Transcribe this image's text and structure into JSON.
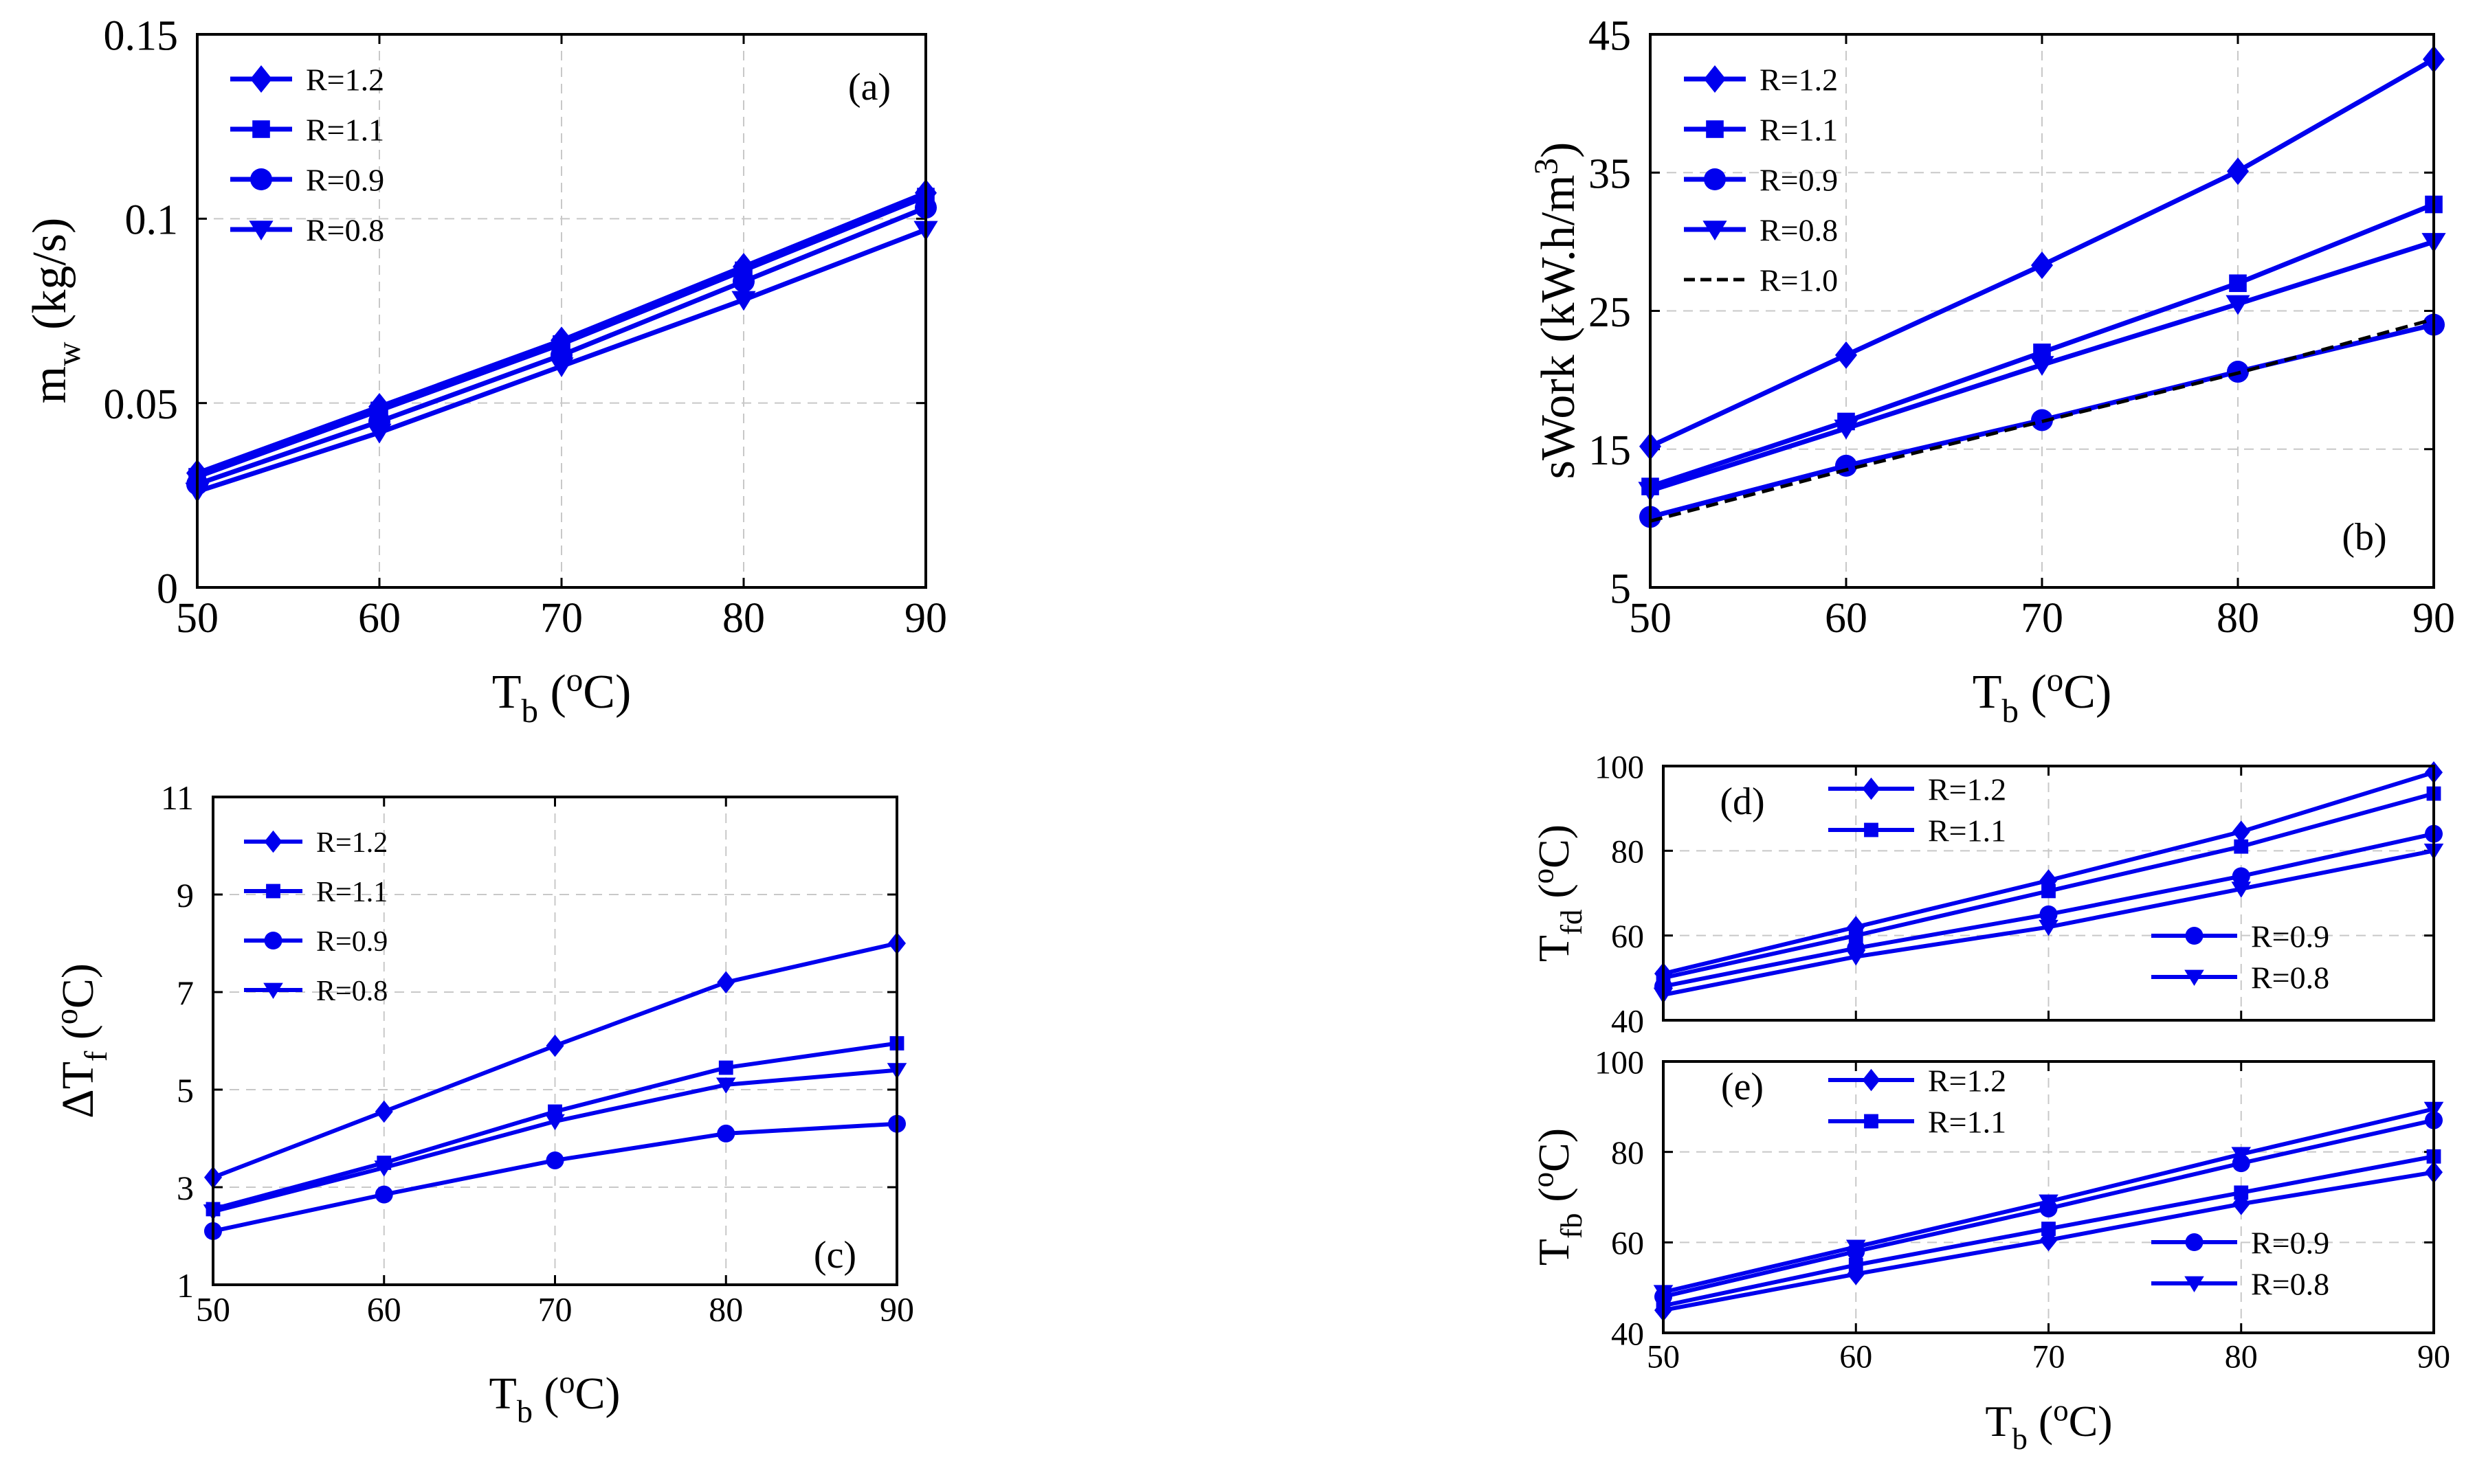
{
  "colors": {
    "series": "#0000ee",
    "reference": "#000000",
    "grid": "#c8c8c8",
    "axis": "#000000"
  },
  "chart_data": [
    {
      "id": "a",
      "type": "line",
      "panel_label": "(a)",
      "ylabel_main": "m",
      "ylabel_sub": "w",
      "ylabel_tail": " (kg/s)",
      "xlabel_main": "T",
      "xlabel_sub": "b",
      "xlabel_tail": " (",
      "xlabel_sup": "o",
      "xlabel_end": "C)",
      "x": [
        50,
        60,
        70,
        80,
        90
      ],
      "xlim": [
        50,
        90
      ],
      "xticks": [
        50,
        60,
        70,
        80,
        90
      ],
      "ylim": [
        0,
        0.15
      ],
      "yticks": [
        0,
        0.05,
        0.1,
        0.15
      ],
      "ytick_labels": [
        "0",
        "0.05",
        "0.1",
        "0.15"
      ],
      "legend_position": "top-left",
      "series": [
        {
          "name": "R=1.2",
          "marker": "diamond",
          "values": [
            0.031,
            0.049,
            0.067,
            0.087,
            0.107
          ]
        },
        {
          "name": "R=1.1",
          "marker": "square",
          "values": [
            0.03,
            0.048,
            0.066,
            0.086,
            0.106
          ]
        },
        {
          "name": "R=0.9",
          "marker": "circle",
          "values": [
            0.028,
            0.045,
            0.063,
            0.083,
            0.103
          ]
        },
        {
          "name": "R=0.8",
          "marker": "triangle-down",
          "values": [
            0.026,
            0.042,
            0.06,
            0.078,
            0.097
          ]
        }
      ]
    },
    {
      "id": "b",
      "type": "line",
      "panel_label": "(b)",
      "ylabel_main": "sWork (kW.h/m",
      "ylabel_sup": "3",
      "ylabel_tail": ")",
      "xlabel_main": "T",
      "xlabel_sub": "b",
      "xlabel_tail": " (",
      "xlabel_sup": "o",
      "xlabel_end": "C)",
      "x": [
        50,
        60,
        70,
        80,
        90
      ],
      "xlim": [
        50,
        90
      ],
      "xticks": [
        50,
        60,
        70,
        80,
        90
      ],
      "ylim": [
        5,
        45
      ],
      "yticks": [
        5,
        15,
        25,
        35,
        45
      ],
      "ytick_labels": [
        "5",
        "15",
        "25",
        "35",
        "45"
      ],
      "legend_position": "top-left",
      "series": [
        {
          "name": "R=1.2",
          "marker": "diamond",
          "values": [
            15.2,
            21.8,
            28.3,
            35.1,
            43.2
          ]
        },
        {
          "name": "R=1.1",
          "marker": "square",
          "values": [
            12.3,
            17.0,
            22.0,
            27.0,
            32.7
          ]
        },
        {
          "name": "R=0.9",
          "marker": "circle",
          "values": [
            10.1,
            13.8,
            17.1,
            20.6,
            24.0
          ]
        },
        {
          "name": "R=0.8",
          "marker": "triangle-down",
          "values": [
            12.0,
            16.5,
            21.1,
            25.5,
            30.0
          ]
        },
        {
          "name": "R=1.0",
          "marker": "none",
          "dashed": true,
          "values": [
            9.8,
            13.5,
            17.0,
            20.5,
            24.4
          ]
        }
      ]
    },
    {
      "id": "c",
      "type": "line",
      "panel_label": "(c)",
      "ylabel_main": "ΔT",
      "ylabel_sub": "f",
      "ylabel_tail": " (",
      "ylabel_sup": "o",
      "ylabel_end": "C)",
      "xlabel_main": "T",
      "xlabel_sub": "b",
      "xlabel_tail": " (",
      "xlabel_sup": "o",
      "xlabel_end": "C)",
      "x": [
        50,
        60,
        70,
        80,
        90
      ],
      "xlim": [
        50,
        90
      ],
      "xticks": [
        50,
        60,
        70,
        80,
        90
      ],
      "ylim": [
        1,
        11
      ],
      "yticks": [
        1,
        3,
        5,
        7,
        9,
        11
      ],
      "ytick_labels": [
        "1",
        "3",
        "5",
        "7",
        "9",
        "11"
      ],
      "legend_position": "top-left",
      "series": [
        {
          "name": "R=1.2",
          "marker": "diamond",
          "values": [
            3.2,
            4.55,
            5.9,
            7.2,
            8.0
          ]
        },
        {
          "name": "R=1.1",
          "marker": "square",
          "values": [
            2.55,
            3.5,
            4.55,
            5.45,
            5.95
          ]
        },
        {
          "name": "R=0.9",
          "marker": "circle",
          "values": [
            2.1,
            2.85,
            3.55,
            4.1,
            4.3
          ]
        },
        {
          "name": "R=0.8",
          "marker": "triangle-down",
          "values": [
            2.5,
            3.4,
            4.35,
            5.1,
            5.4
          ]
        }
      ]
    },
    {
      "id": "d",
      "type": "line",
      "panel_label": "(d)",
      "ylabel_main": "T",
      "ylabel_sub": "fd",
      "ylabel_tail": " (",
      "ylabel_sup": "o",
      "ylabel_end": "C)",
      "x": [
        50,
        60,
        70,
        80,
        90
      ],
      "xlim": [
        50,
        90
      ],
      "xticks": [
        50,
        60,
        70,
        80,
        90
      ],
      "show_xtick_labels": false,
      "ylim": [
        40,
        100
      ],
      "yticks": [
        40,
        60,
        80,
        100
      ],
      "ytick_labels": [
        "40",
        "60",
        "80",
        "100"
      ],
      "legend_position": "split: top-center and bottom-right",
      "series": [
        {
          "name": "R=1.2",
          "marker": "diamond",
          "values": [
            51,
            62,
            73,
            84.5,
            98.5
          ]
        },
        {
          "name": "R=1.1",
          "marker": "square",
          "values": [
            50,
            60,
            70.5,
            81,
            93.5
          ]
        },
        {
          "name": "R=0.9",
          "marker": "circle",
          "values": [
            48,
            57,
            65,
            74,
            84
          ]
        },
        {
          "name": "R=0.8",
          "marker": "triangle-down",
          "values": [
            46,
            55,
            62,
            71,
            80
          ]
        }
      ]
    },
    {
      "id": "e",
      "type": "line",
      "panel_label": "(e)",
      "ylabel_main": "T",
      "ylabel_sub": "fb",
      "ylabel_tail": " (",
      "ylabel_sup": "o",
      "ylabel_end": "C)",
      "xlabel_main": "T",
      "xlabel_sub": "b",
      "xlabel_tail": " (",
      "xlabel_sup": "o",
      "xlabel_end": "C)",
      "x": [
        50,
        60,
        70,
        80,
        90
      ],
      "xlim": [
        50,
        90
      ],
      "xticks": [
        50,
        60,
        70,
        80,
        90
      ],
      "ylim": [
        40,
        100
      ],
      "yticks": [
        40,
        60,
        80,
        100
      ],
      "ytick_labels": [
        "40",
        "60",
        "80",
        "100"
      ],
      "legend_position": "split: top-center and bottom-right",
      "series": [
        {
          "name": "R=1.2",
          "marker": "diamond",
          "values": [
            45,
            53,
            60.5,
            68.5,
            75.5
          ]
        },
        {
          "name": "R=1.1",
          "marker": "square",
          "values": [
            46,
            55,
            63,
            71,
            79
          ]
        },
        {
          "name": "R=0.9",
          "marker": "circle",
          "values": [
            48,
            58,
            67.5,
            77.5,
            87
          ]
        },
        {
          "name": "R=0.8",
          "marker": "triangle-down",
          "values": [
            49,
            59,
            69,
            79.5,
            89.5
          ]
        }
      ]
    }
  ]
}
